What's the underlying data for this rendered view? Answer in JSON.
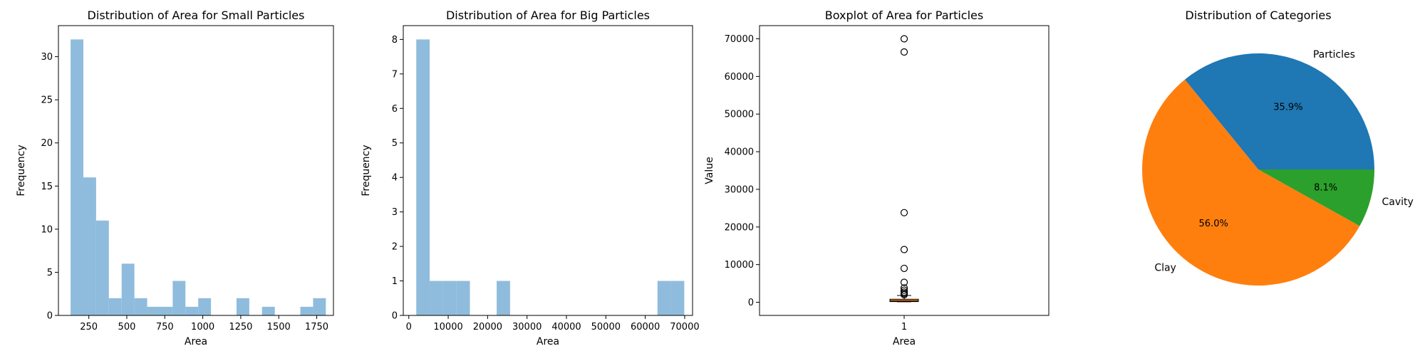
{
  "chart_data": [
    {
      "type": "histogram",
      "title": "Distribution of Area for Small Particles",
      "xlabel": "Area",
      "ylabel": "Frequency",
      "xlim": [
        50,
        1860
      ],
      "ylim": [
        0,
        33.6
      ],
      "xticks": [
        "250",
        "500",
        "750",
        "1000",
        "1250",
        "1500",
        "1750"
      ],
      "xtick_values": [
        250,
        500,
        750,
        1000,
        1250,
        1500,
        1750
      ],
      "yticks": [
        "0",
        "5",
        "10",
        "15",
        "20",
        "25",
        "30"
      ],
      "ytick_values": [
        0,
        5,
        10,
        15,
        20,
        25,
        30
      ],
      "bin_edges": [
        130,
        214,
        298,
        382,
        466,
        550,
        634,
        718,
        802,
        886,
        970,
        1054,
        1138,
        1222,
        1306,
        1390,
        1474,
        1558,
        1642,
        1726,
        1810
      ],
      "counts": [
        32,
        16,
        11,
        2,
        6,
        2,
        1,
        1,
        4,
        1,
        2,
        0,
        0,
        2,
        0,
        1,
        0,
        0,
        1,
        2
      ],
      "color": "#8fbcdc"
    },
    {
      "type": "histogram",
      "title": "Distribution of Area for Big Particles",
      "xlabel": "Area",
      "ylabel": "Frequency",
      "xlim": [
        -1400,
        72000
      ],
      "ylim": [
        0,
        8.4
      ],
      "xticks": [
        "0",
        "10000",
        "20000",
        "30000",
        "40000",
        "50000",
        "60000",
        "70000"
      ],
      "xtick_values": [
        0,
        10000,
        20000,
        30000,
        40000,
        50000,
        60000,
        70000
      ],
      "yticks": [
        "0",
        "1",
        "2",
        "3",
        "4",
        "5",
        "6",
        "7",
        "8"
      ],
      "ytick_values": [
        0,
        1,
        2,
        3,
        4,
        5,
        6,
        7,
        8
      ],
      "bin_edges": [
        1900,
        5300,
        8700,
        12100,
        15500,
        18900,
        22300,
        25700,
        29100,
        32500,
        35900,
        39300,
        42700,
        46100,
        49500,
        52900,
        56300,
        59700,
        63100,
        66500,
        69900
      ],
      "counts": [
        8,
        1,
        1,
        1,
        0,
        0,
        1,
        0,
        0,
        0,
        0,
        0,
        0,
        0,
        0,
        0,
        0,
        0,
        1,
        1
      ],
      "color": "#8fbcdc"
    },
    {
      "type": "box",
      "title": "Boxplot of Area for Particles",
      "xlabel": "Area",
      "ylabel": "Value",
      "ylim": [
        -3500,
        73500
      ],
      "categories": [
        "1"
      ],
      "yticks": [
        "0",
        "10000",
        "20000",
        "30000",
        "40000",
        "50000",
        "60000",
        "70000"
      ],
      "ytick_values": [
        0,
        10000,
        20000,
        30000,
        40000,
        50000,
        60000,
        70000
      ],
      "box": {
        "min": 130,
        "q1": 170,
        "median": 320,
        "q3": 800,
        "max": 1800
      },
      "outliers": [
        70000,
        66500,
        23800,
        14000,
        9000,
        5300,
        3800,
        3200,
        2700,
        2300,
        2000
      ],
      "box_color": "#ff7f0e"
    },
    {
      "type": "pie",
      "title": "Distribution of Categories",
      "slices": [
        {
          "label": "Particles",
          "pct_label": "35.9%",
          "value": 35.9,
          "color": "#1f77b4"
        },
        {
          "label": "Clay",
          "pct_label": "56.0%",
          "value": 56.0,
          "color": "#ff7f0e"
        },
        {
          "label": "Cavity",
          "pct_label": "8.1%",
          "value": 8.1,
          "color": "#2ca02c"
        }
      ]
    }
  ]
}
